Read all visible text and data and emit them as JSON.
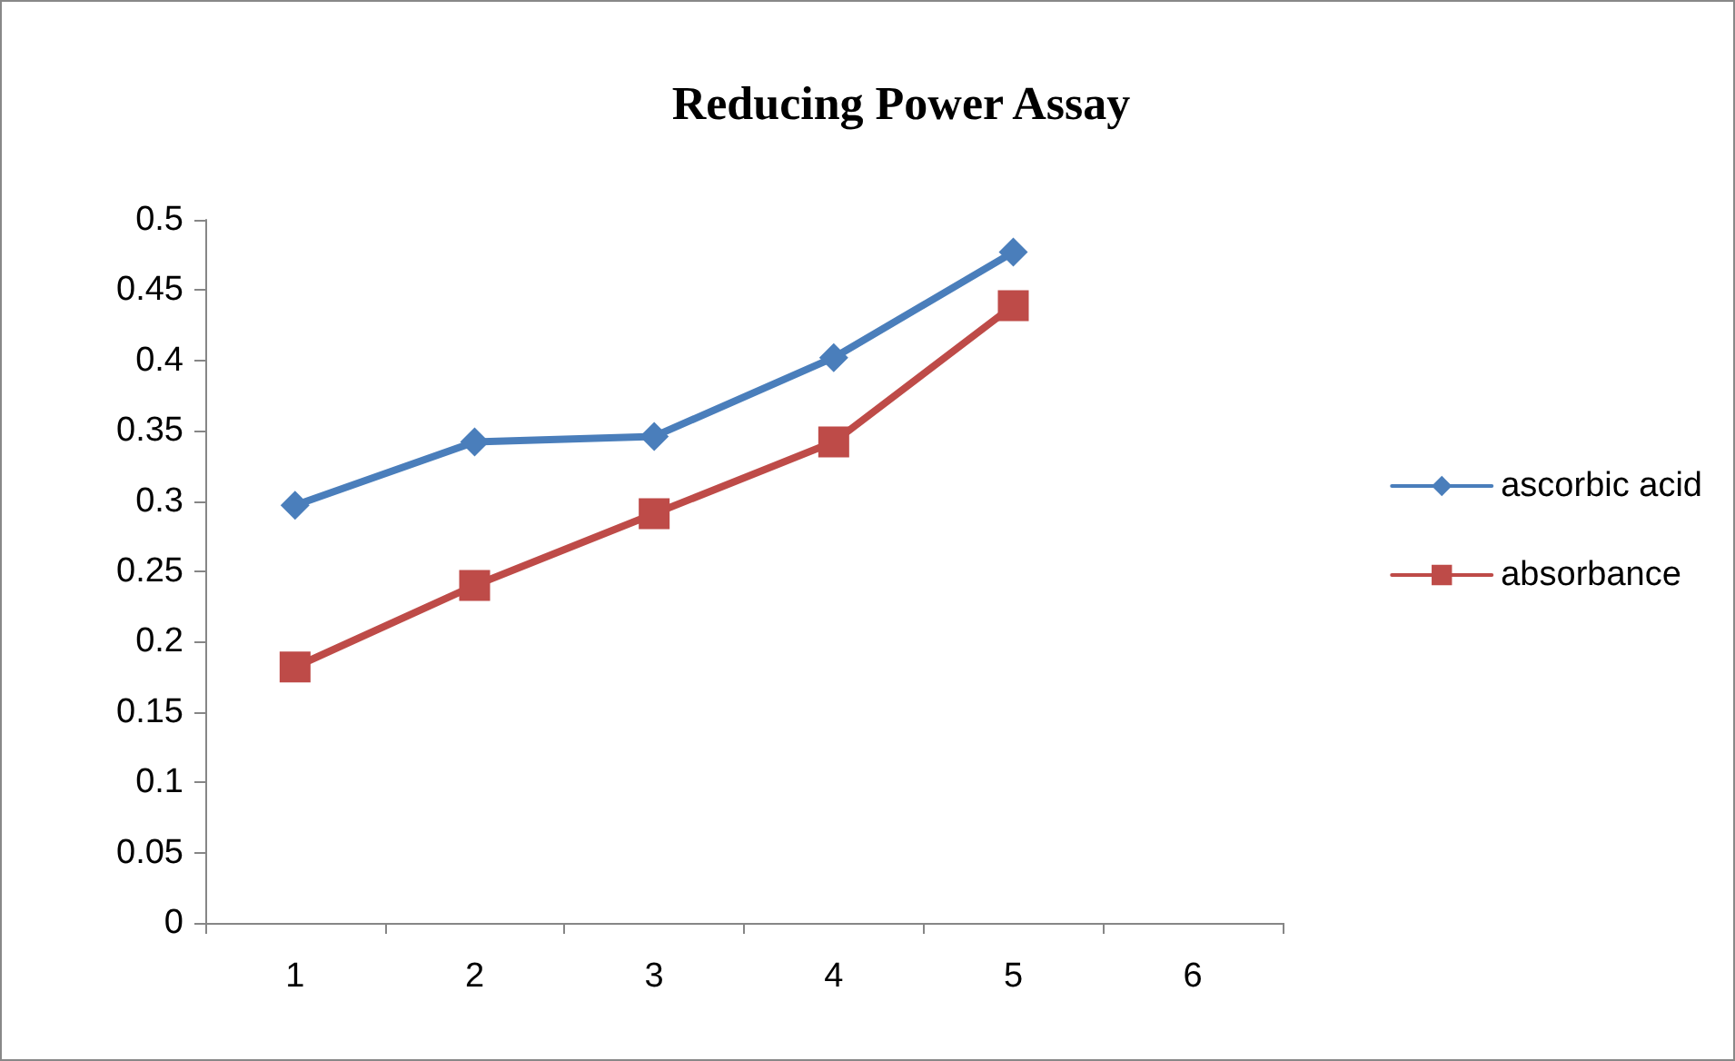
{
  "chart_data": {
    "type": "line",
    "title": "Reducing Power Assay",
    "categories": [
      "1",
      "2",
      "3",
      "4",
      "5",
      "6"
    ],
    "series": [
      {
        "name": "ascorbic acid",
        "color": "#4a7ebb",
        "marker": "diamond",
        "values": [
          0.297,
          0.342,
          0.346,
          0.402,
          0.477,
          null
        ]
      },
      {
        "name": "absorbance",
        "color": "#be4b48",
        "marker": "square",
        "values": [
          0.182,
          0.24,
          0.291,
          0.342,
          0.439,
          null
        ]
      }
    ],
    "ylim": [
      0,
      0.5
    ],
    "yticks": [
      0,
      0.05,
      0.1,
      0.15,
      0.2,
      0.25,
      0.3,
      0.35,
      0.4,
      0.45,
      0.5
    ],
    "grid": false,
    "legend": "right"
  }
}
